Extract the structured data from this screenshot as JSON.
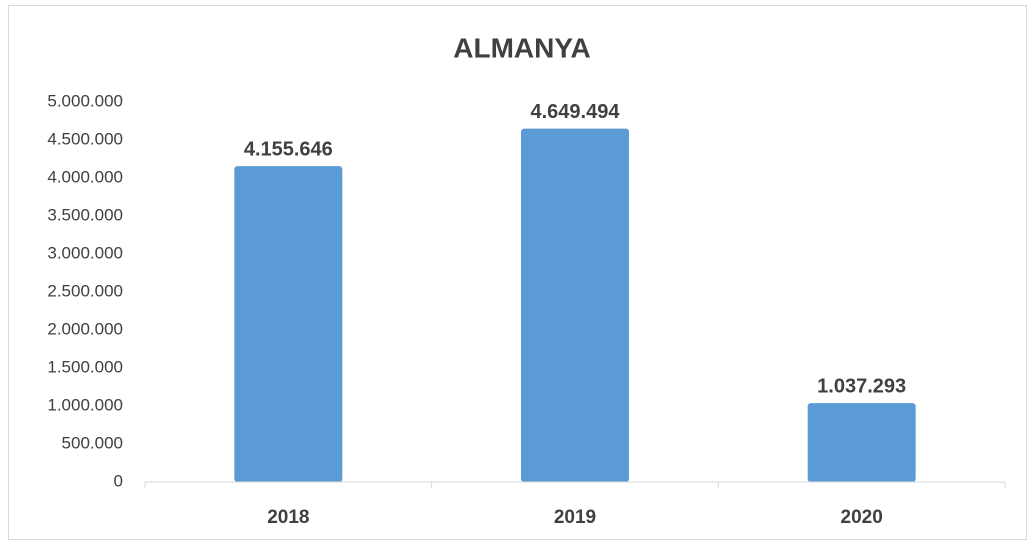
{
  "chart_data": {
    "type": "bar",
    "title": "ALMANYA",
    "categories": [
      "2018",
      "2019",
      "2020"
    ],
    "values": [
      4155646,
      4649494,
      1037293
    ],
    "value_labels": [
      "4.155.646",
      "4.649.494",
      "1.037.293"
    ],
    "color": "#5b9bd5",
    "ylim": [
      0,
      5000000
    ],
    "yticks": [
      0,
      {
        "value": 500000,
        "label": "500.000"
      },
      {
        "value": 1000000,
        "label": "1.000.000"
      },
      {
        "value": 1500000,
        "label": "1.500.000"
      },
      {
        "value": 2000000,
        "label": "2.000.000"
      },
      {
        "value": 2500000,
        "label": "2.500.000"
      },
      {
        "value": 3000000,
        "label": "3.000.000"
      },
      {
        "value": 3500000,
        "label": "3.500.000"
      },
      {
        "value": 4000000,
        "label": "4.000.000"
      },
      {
        "value": 4500000,
        "label": "4.500.000"
      },
      {
        "value": 5000000,
        "label": "5.000.000"
      }
    ],
    "grid": false
  }
}
